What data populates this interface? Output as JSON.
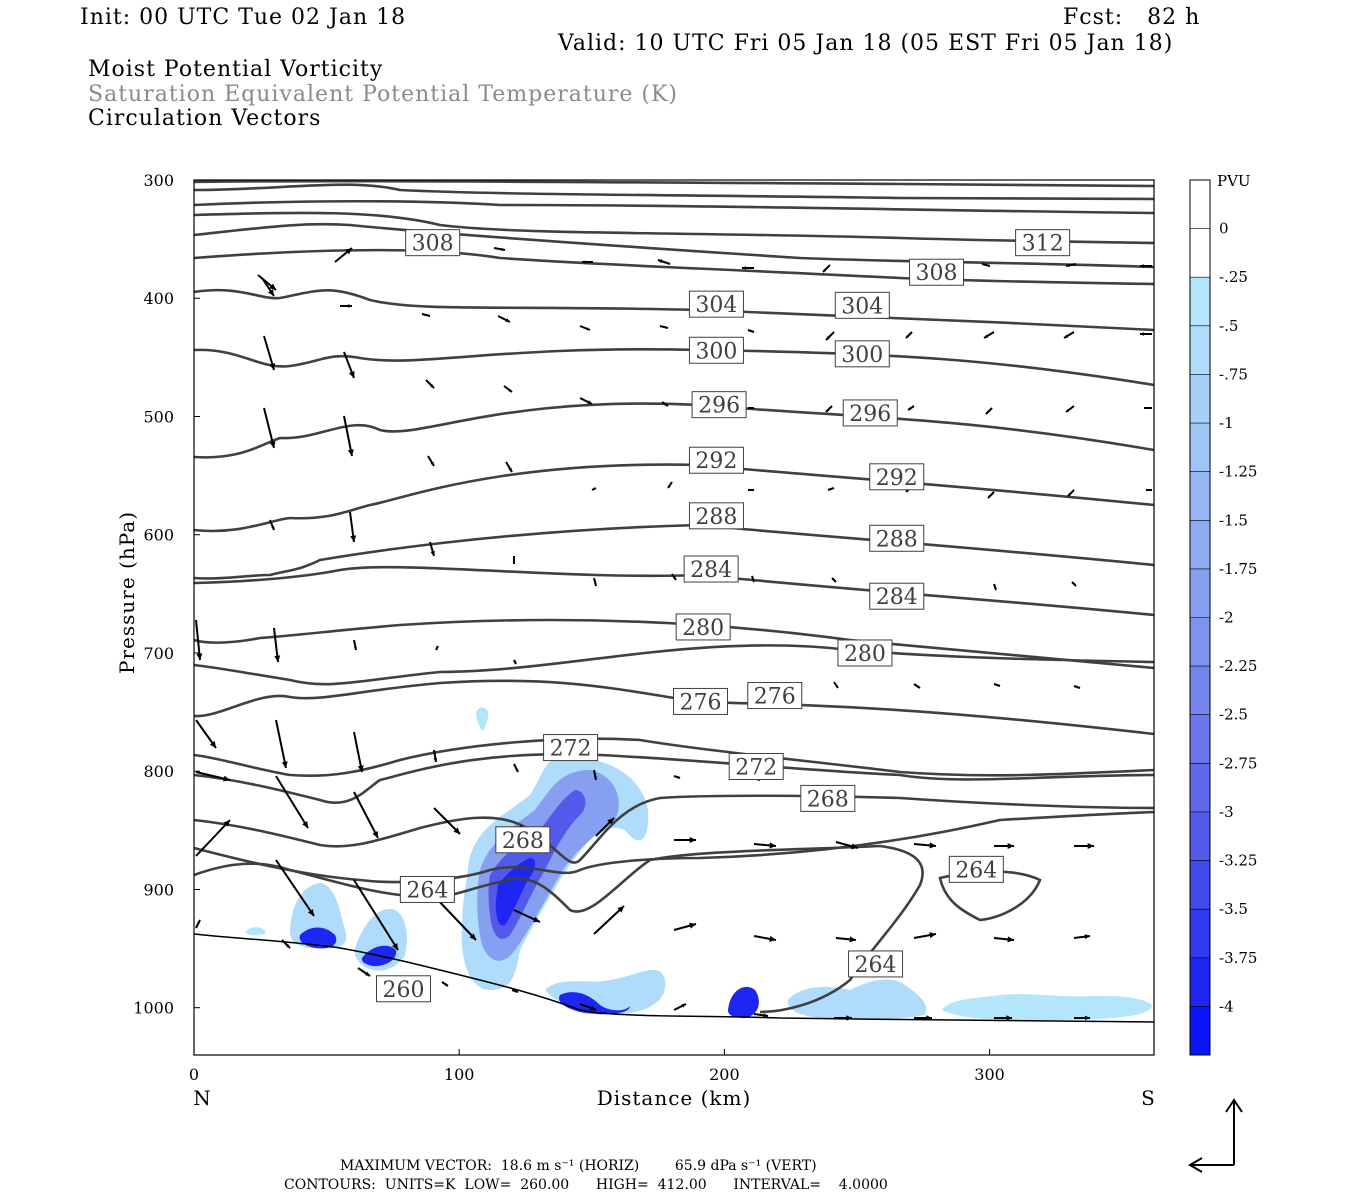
{
  "header": {
    "init": "Init: 00 UTC Tue 02 Jan 18",
    "fcst": "Fcst:   82 h",
    "valid": "Valid: 10 UTC Fri 05 Jan 18 (05 EST Fri 05 Jan 18)",
    "title1": "Moist Potential Vorticity",
    "title2": "Saturation Equivalent Potential Temperature (K)",
    "title3": "Circulation Vectors"
  },
  "footer": {
    "line1": "MAXIMUM VECTOR:  18.6 m s⁻¹ (HORIZ)        65.9 dPa s⁻¹ (VERT)",
    "line2": "CONTOURS:  UNITS=K  LOW=  260.00      HIGH=  412.00      INTERVAL=    4.0000"
  },
  "chart_data": {
    "type": "cross-section contour (filled MPV + theta_es contours + circulation vectors)",
    "xlabel": "Distance (km)",
    "ylabel": "Pressure (hPa)",
    "xlim": [
      0,
      362
    ],
    "ylim": [
      1040,
      300
    ],
    "x_ticks": [
      0,
      100,
      200,
      300
    ],
    "y_ticks": [
      300,
      400,
      500,
      600,
      700,
      800,
      900,
      1000
    ],
    "x_end_labels": {
      "left": "N",
      "right": "S"
    },
    "colorbar": {
      "unit": "PVU",
      "levels": [
        "0",
        "-.25",
        "-.5",
        "-.75",
        "-1",
        "-1.25",
        "-1.5",
        "-1.75",
        "-2",
        "-2.25",
        "-2.5",
        "-2.75",
        "-3",
        "-3.25",
        "-3.5",
        "-3.75",
        "-4"
      ],
      "colors": [
        "#ffffff",
        "#ffffff",
        "#b3e5fb",
        "#aedcfa",
        "#a6d0f8",
        "#9fc4f6",
        "#97b8f4",
        "#8fabf2",
        "#879ff0",
        "#7e92ee",
        "#7585ec",
        "#6b77ea",
        "#6069e9",
        "#535ae9",
        "#434aeb",
        "#3139ee",
        "#1e27f2",
        "#0a14f8"
      ]
    },
    "contour_labels": [
      {
        "value": "312",
        "x": 320,
        "p": 353
      },
      {
        "value": "308",
        "x": 90,
        "p": 353
      },
      {
        "value": "308",
        "x": 280,
        "p": 378
      },
      {
        "value": "304",
        "x": 197,
        "p": 405
      },
      {
        "value": "304",
        "x": 252,
        "p": 406
      },
      {
        "value": "300",
        "x": 197,
        "p": 444
      },
      {
        "value": "300",
        "x": 252,
        "p": 447
      },
      {
        "value": "296",
        "x": 198,
        "p": 490
      },
      {
        "value": "296",
        "x": 255,
        "p": 497
      },
      {
        "value": "292",
        "x": 197,
        "p": 537
      },
      {
        "value": "292",
        "x": 265,
        "p": 551
      },
      {
        "value": "288",
        "x": 197,
        "p": 584
      },
      {
        "value": "288",
        "x": 265,
        "p": 603
      },
      {
        "value": "284",
        "x": 195,
        "p": 629
      },
      {
        "value": "284",
        "x": 265,
        "p": 652
      },
      {
        "value": "280",
        "x": 192,
        "p": 678
      },
      {
        "value": "280",
        "x": 253,
        "p": 700
      },
      {
        "value": "276",
        "x": 191,
        "p": 741
      },
      {
        "value": "276",
        "x": 219,
        "p": 736
      },
      {
        "value": "272",
        "x": 142,
        "p": 780
      },
      {
        "value": "272",
        "x": 212,
        "p": 796
      },
      {
        "value": "268",
        "x": 124,
        "p": 858
      },
      {
        "value": "268",
        "x": 239,
        "p": 823
      },
      {
        "value": "264",
        "x": 88,
        "p": 900
      },
      {
        "value": "264",
        "x": 295,
        "p": 883
      },
      {
        "value": "264",
        "x": 257,
        "p": 963
      },
      {
        "value": "260",
        "x": 79,
        "p": 984
      }
    ]
  }
}
